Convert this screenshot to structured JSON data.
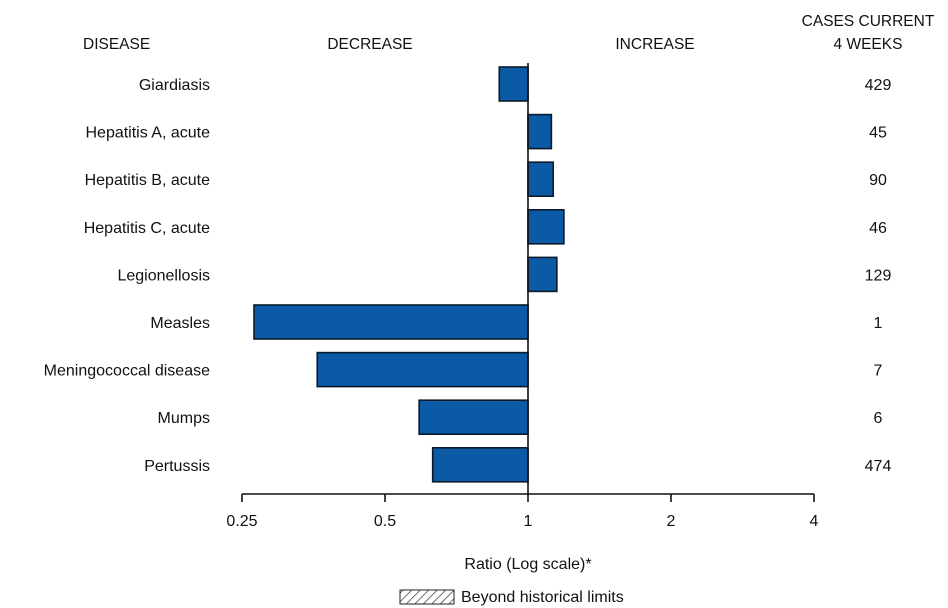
{
  "headers": {
    "disease": "DISEASE",
    "decrease": "DECREASE",
    "increase": "INCREASE",
    "cases_line1": "CASES CURRENT",
    "cases_line2": "4 WEEKS"
  },
  "legend": {
    "label": "Beyond historical limits",
    "swatch": "hatched"
  },
  "colors": {
    "bar_fill": "#0b5aa6",
    "bar_stroke": "#0a1a2c",
    "text": "#111111"
  },
  "chart_data": {
    "type": "bar",
    "orientation": "horizontal",
    "xscale": "log2",
    "xlabel": "Ratio (Log scale)*",
    "xlim": [
      0.25,
      4
    ],
    "baseline": 1,
    "xticks": [
      0.25,
      0.5,
      1,
      2,
      4
    ],
    "xtick_labels": [
      "0.25",
      "0.5",
      "1",
      "2",
      "4"
    ],
    "categories": [
      "Giardiasis",
      "Hepatitis A, acute",
      "Hepatitis B, acute",
      "Hepatitis C, acute",
      "Legionellosis",
      "Measles",
      "Meningococcal disease",
      "Mumps",
      "Pertussis"
    ],
    "values": [
      0.87,
      1.12,
      1.13,
      1.19,
      1.15,
      0.265,
      0.36,
      0.59,
      0.63
    ],
    "cases_current_4_weeks": [
      "429",
      "45",
      "90",
      "46",
      "129",
      "1",
      "7",
      "6",
      "474"
    ],
    "beyond_historical_limits": [
      false,
      false,
      false,
      false,
      false,
      false,
      false,
      false,
      false
    ]
  }
}
